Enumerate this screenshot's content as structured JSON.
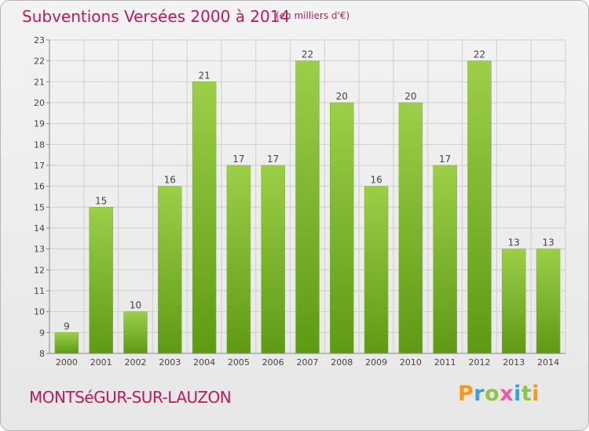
{
  "header": {
    "title": "Subventions Versées 2000 à 2014",
    "subtitle": "(en milliers d'€)"
  },
  "footer": {
    "place": "MONTSéGUR-SUR-LAUZON",
    "logo": "Proxiti"
  },
  "colors": {
    "title": "#c2185b",
    "bar_top": "#9ccf48",
    "bar_bottom": "#5f9a14",
    "grid": "#cfcfcf"
  },
  "chart_data": {
    "type": "bar",
    "categories": [
      "2000",
      "2001",
      "2002",
      "2003",
      "2004",
      "2005",
      "2006",
      "2007",
      "2008",
      "2009",
      "2010",
      "2011",
      "2012",
      "2013",
      "2014"
    ],
    "values": [
      9,
      15,
      10,
      16,
      21,
      17,
      17,
      22,
      20,
      16,
      20,
      17,
      22,
      13,
      13
    ],
    "title": "Subventions Versées 2000 à 2014",
    "subtitle": "(en milliers d'€)",
    "xlabel": "",
    "ylabel": "",
    "ylim": [
      8,
      23
    ],
    "yticks": [
      8,
      9,
      10,
      11,
      12,
      13,
      14,
      15,
      16,
      17,
      18,
      19,
      20,
      21,
      22,
      23
    ],
    "grid": true,
    "data_labels": true,
    "legend": "none"
  }
}
